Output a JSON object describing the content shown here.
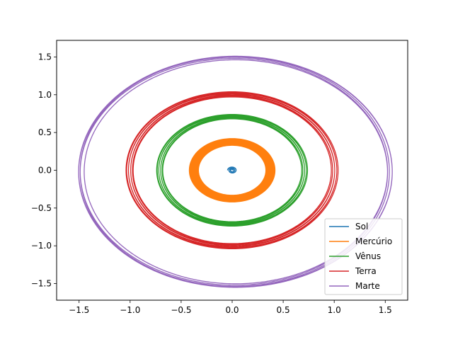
{
  "chart_data": {
    "type": "line",
    "title": "",
    "xlabel": "",
    "ylabel": "",
    "xlim": [
      -1.72,
      1.72
    ],
    "ylim": [
      -1.72,
      1.72
    ],
    "grid": false,
    "legend_position": "lower-right",
    "x_ticks": [
      -1.5,
      -1.0,
      -0.5,
      0.0,
      0.5,
      1.0,
      1.5
    ],
    "x_tick_labels": [
      "−1.5",
      "−1.0",
      "−0.5",
      "0.0",
      "0.5",
      "1.0",
      "1.5"
    ],
    "y_ticks": [
      -1.5,
      -1.0,
      -0.5,
      0.0,
      0.5,
      1.0,
      1.5
    ],
    "y_tick_labels": [
      "−1.5",
      "−1.0",
      "−0.5",
      "0.0",
      "0.5",
      "1.0",
      "1.5"
    ],
    "series": [
      {
        "name": "Sol",
        "color": "#1f77b4",
        "shape": "spiral",
        "center": [
          0.0,
          0.0
        ],
        "r_inner": 0.01,
        "r_outer": 0.045,
        "turns": 2.5
      },
      {
        "name": "Mercúrio",
        "color": "#ff7f0e",
        "shape": "band",
        "center": [
          0.0,
          0.0
        ],
        "r_inner": 0.33,
        "r_outer": 0.42,
        "loops": 40
      },
      {
        "name": "Vênus",
        "color": "#2ca02c",
        "shape": "band",
        "center": [
          0.0,
          0.0
        ],
        "r_inner": 0.68,
        "r_outer": 0.74,
        "loops": 30
      },
      {
        "name": "Terra",
        "color": "#d62728",
        "shape": "band",
        "center": [
          0.0,
          0.0
        ],
        "r_inner": 0.97,
        "r_outer": 1.04,
        "loops": 30
      },
      {
        "name": "Marte",
        "color": "#9467bd",
        "shape": "ellipse-band",
        "center": [
          0.03,
          -0.02
        ],
        "rx": [
          1.48,
          1.54
        ],
        "ry": [
          1.48,
          1.53
        ],
        "loops": 5
      }
    ]
  }
}
